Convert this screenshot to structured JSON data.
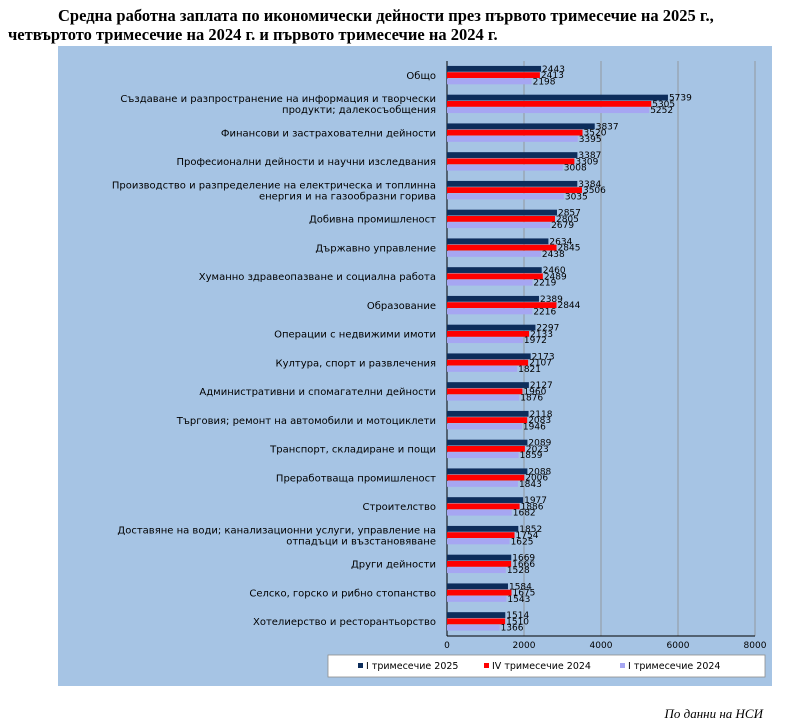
{
  "title": {
    "line1": "Средна работна заплата по икономически дейности през първото тримесечие на 2025 г.,",
    "line2": "четвъртото тримесечие на 2024 г. и първото тримесечие на 2024 г."
  },
  "source": "По данни на НСИ",
  "colors": {
    "background": "#a6c4e4",
    "series": [
      "#0d2d5b",
      "#ff0000",
      "#a6a6f2"
    ]
  },
  "chart_data": {
    "type": "bar",
    "orientation": "horizontal",
    "categories": [
      [
        "Общо"
      ],
      [
        "Създаване и разпространение на информация и творчески",
        "продукти; далекосъобщения"
      ],
      [
        "Финансови и застрахователни дейности"
      ],
      [
        "Професионални дейности и научни изследвания"
      ],
      [
        "Производство и разпределение на електрическа и топлинна",
        "енергия и на газообразни горива"
      ],
      [
        "Добивна промишленост"
      ],
      [
        "Държавно управление"
      ],
      [
        "Хуманно здравеопазване и социална работа"
      ],
      [
        "Образование"
      ],
      [
        "Операции с недвижими имоти"
      ],
      [
        "Култура, спорт и развлечения"
      ],
      [
        "Административни и спомагателни дейности"
      ],
      [
        "Търговия; ремонт на автомобили и мотоциклети"
      ],
      [
        "Транспорт, складиране и пощи"
      ],
      [
        "Преработваща промишленост"
      ],
      [
        "Строителство"
      ],
      [
        "Доставяне на води; канализационни услуги, управление на",
        "отпадъци и възстановяване"
      ],
      [
        "Други дейности"
      ],
      [
        "Селско, горско и рибно стопанство"
      ],
      [
        "Хотелиерство и ресторантьорство"
      ]
    ],
    "series": [
      {
        "name": "I тримесечие 2025",
        "values": [
          2443,
          5739,
          3837,
          3387,
          3384,
          2857,
          2634,
          2460,
          2389,
          2297,
          2173,
          2127,
          2118,
          2089,
          2088,
          1977,
          1852,
          1669,
          1584,
          1514
        ]
      },
      {
        "name": "IV тримесечие 2024",
        "values": [
          2413,
          5305,
          3520,
          3309,
          3506,
          2805,
          2845,
          2489,
          2844,
          2133,
          2107,
          1960,
          2083,
          2023,
          2006,
          1886,
          1754,
          1666,
          1675,
          1510
        ]
      },
      {
        "name": "I тримесечие 2024",
        "values": [
          2198,
          5252,
          3395,
          3008,
          3035,
          2679,
          2438,
          2219,
          2216,
          1972,
          1821,
          1876,
          1946,
          1859,
          1843,
          1682,
          1625,
          1528,
          1543,
          1366
        ]
      }
    ],
    "xlim": [
      0,
      8000
    ],
    "xticks": [
      "0",
      "2000",
      "4000",
      "6000",
      "8000"
    ],
    "grid": true,
    "legend_position": "bottom"
  }
}
